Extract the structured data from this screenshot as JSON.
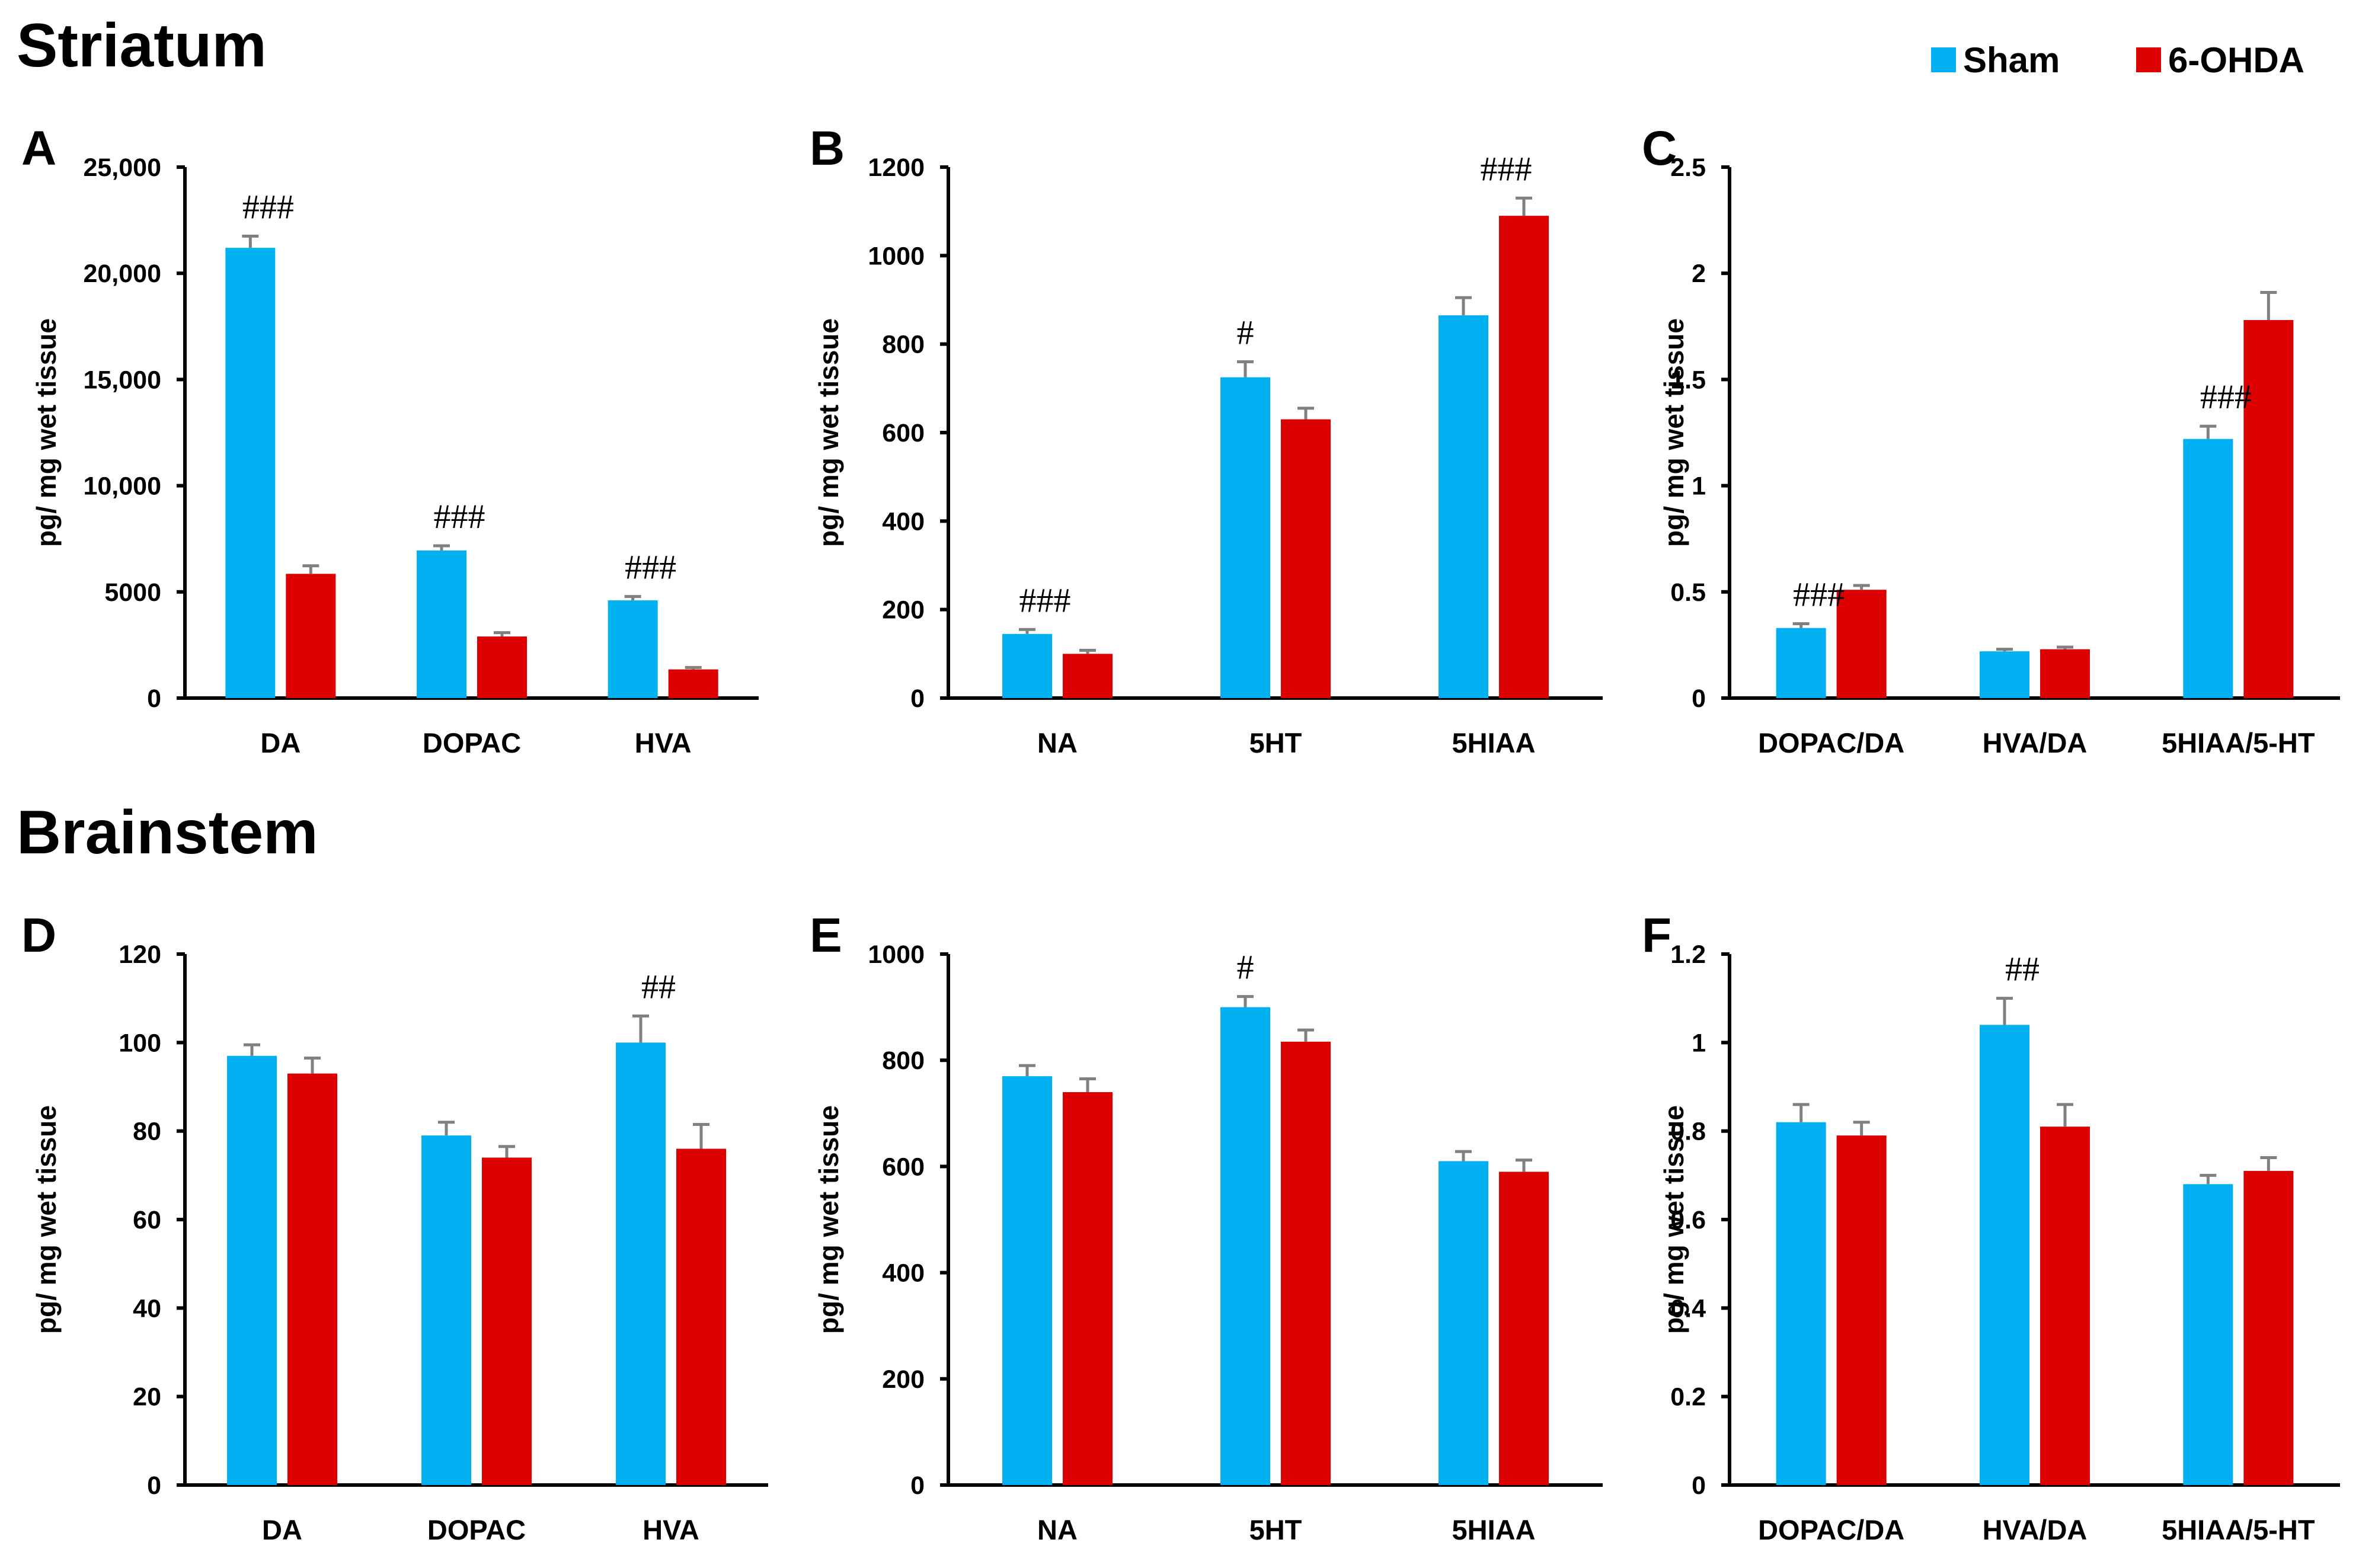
{
  "sections": {
    "top": "Striatum",
    "bottom": "Brainstem"
  },
  "legend": [
    {
      "name": "Sham",
      "color": "#00b0f0"
    },
    {
      "name": "6-OHDA",
      "color": "#dd0000"
    }
  ],
  "colors": {
    "sham": "#00b0f0",
    "ohda": "#dd0000",
    "error_bar": "#808080",
    "axis": "#000000"
  },
  "chart_data": [
    {
      "id": "A",
      "type": "bar",
      "section": "Striatum",
      "ylabel": "pg/ mg wet tissue",
      "categories": [
        "DA",
        "DOPAC",
        "HVA"
      ],
      "ylim": [
        0,
        25000
      ],
      "yticks": [
        0,
        5000,
        10000,
        15000,
        20000,
        25000
      ],
      "ytick_labels": [
        "0",
        "5000",
        "10,000",
        "15,000",
        "20,000",
        "25,000"
      ],
      "series": [
        {
          "name": "Sham",
          "values": [
            21200,
            6950,
            4600
          ],
          "errors": [
            550,
            220,
            180
          ]
        },
        {
          "name": "6-OHDA",
          "values": [
            5850,
            2900,
            1350
          ],
          "errors": [
            380,
            180,
            90
          ]
        }
      ],
      "annotations": [
        {
          "category": 0,
          "series": 0,
          "text": "###"
        },
        {
          "category": 1,
          "series": 0,
          "text": "###"
        },
        {
          "category": 2,
          "series": 0,
          "text": "###"
        }
      ]
    },
    {
      "id": "B",
      "type": "bar",
      "section": "Striatum",
      "ylabel": "pg/ mg wet tissue",
      "categories": [
        "NA",
        "5HT",
        "5HIAA"
      ],
      "ylim": [
        0,
        1200
      ],
      "yticks": [
        0,
        200,
        400,
        600,
        800,
        1000,
        1200
      ],
      "ytick_labels": [
        "0",
        "200",
        "400",
        "600",
        "800",
        "1000",
        "1200"
      ],
      "series": [
        {
          "name": "Sham",
          "values": [
            145,
            725,
            865
          ],
          "errors": [
            10,
            35,
            40
          ]
        },
        {
          "name": "6-OHDA",
          "values": [
            100,
            630,
            1090
          ],
          "errors": [
            8,
            25,
            40
          ]
        }
      ],
      "annotations": [
        {
          "category": 0,
          "series": 0,
          "text": "###"
        },
        {
          "category": 1,
          "series": 0,
          "text": "#"
        },
        {
          "category": 2,
          "series": 1,
          "text": "###"
        }
      ]
    },
    {
      "id": "C",
      "type": "bar",
      "section": "Striatum",
      "ylabel": "pg/ mg wet tissue",
      "categories": [
        "DOPAC/DA",
        "HVA/DA",
        "5HIAA/5-HT"
      ],
      "ylim": [
        0,
        2.5
      ],
      "yticks": [
        0,
        0.5,
        1,
        1.5,
        2,
        2.5
      ],
      "ytick_labels": [
        "0",
        "0.5",
        "1",
        "1.5",
        "2",
        "2.5"
      ],
      "series": [
        {
          "name": "Sham",
          "values": [
            0.33,
            0.22,
            1.22
          ],
          "errors": [
            0.02,
            0.01,
            0.06
          ]
        },
        {
          "name": "6-OHDA",
          "values": [
            0.51,
            0.23,
            1.78
          ],
          "errors": [
            0.02,
            0.01,
            0.13
          ]
        }
      ],
      "annotations": [
        {
          "category": 0,
          "series": 0,
          "text": "###"
        },
        {
          "category": 2,
          "series": 0,
          "text": "###"
        }
      ]
    },
    {
      "id": "D",
      "type": "bar",
      "section": "Brainstem",
      "ylabel": "pg/ mg wet tissue",
      "categories": [
        "DA",
        "DOPAC",
        "HVA"
      ],
      "ylim": [
        0,
        120
      ],
      "yticks": [
        0,
        20,
        40,
        60,
        80,
        100,
        120
      ],
      "ytick_labels": [
        "0",
        "20",
        "40",
        "60",
        "80",
        "100",
        "120"
      ],
      "series": [
        {
          "name": "Sham",
          "values": [
            97,
            79,
            100
          ],
          "errors": [
            2.5,
            3,
            6
          ]
        },
        {
          "name": "6-OHDA",
          "values": [
            93,
            74,
            76
          ],
          "errors": [
            3.5,
            2.5,
            5.5
          ]
        }
      ],
      "annotations": [
        {
          "category": 2,
          "series": 0,
          "text": "##"
        }
      ]
    },
    {
      "id": "E",
      "type": "bar",
      "section": "Brainstem",
      "ylabel": "pg/ mg wet tissue",
      "categories": [
        "NA",
        "5HT",
        "5HIAA"
      ],
      "ylim": [
        0,
        1000
      ],
      "yticks": [
        0,
        200,
        400,
        600,
        800,
        1000
      ],
      "ytick_labels": [
        "0",
        "200",
        "400",
        "600",
        "800",
        "1000"
      ],
      "series": [
        {
          "name": "Sham",
          "values": [
            770,
            900,
            610
          ],
          "errors": [
            20,
            20,
            18
          ]
        },
        {
          "name": "6-OHDA",
          "values": [
            740,
            835,
            590
          ],
          "errors": [
            25,
            22,
            22
          ]
        }
      ],
      "annotations": [
        {
          "category": 1,
          "series": 0,
          "text": "#"
        }
      ]
    },
    {
      "id": "F",
      "type": "bar",
      "section": "Brainstem",
      "ylabel": "pg/ mg wet tissue",
      "categories": [
        "DOPAC/DA",
        "HVA/DA",
        "5HIAA/5-HT"
      ],
      "ylim": [
        0,
        1.2
      ],
      "yticks": [
        0,
        0.2,
        0.4,
        0.6,
        0.8,
        1,
        1.2
      ],
      "ytick_labels": [
        "0",
        "0.2",
        "0.4",
        "0.6",
        "0.8",
        "1",
        "1.2"
      ],
      "series": [
        {
          "name": "Sham",
          "values": [
            0.82,
            1.04,
            0.68
          ],
          "errors": [
            0.04,
            0.06,
            0.02
          ]
        },
        {
          "name": "6-OHDA",
          "values": [
            0.79,
            0.81,
            0.71
          ],
          "errors": [
            0.03,
            0.05,
            0.03
          ]
        }
      ],
      "annotations": [
        {
          "category": 1,
          "series": 0,
          "text": "##"
        }
      ]
    }
  ]
}
